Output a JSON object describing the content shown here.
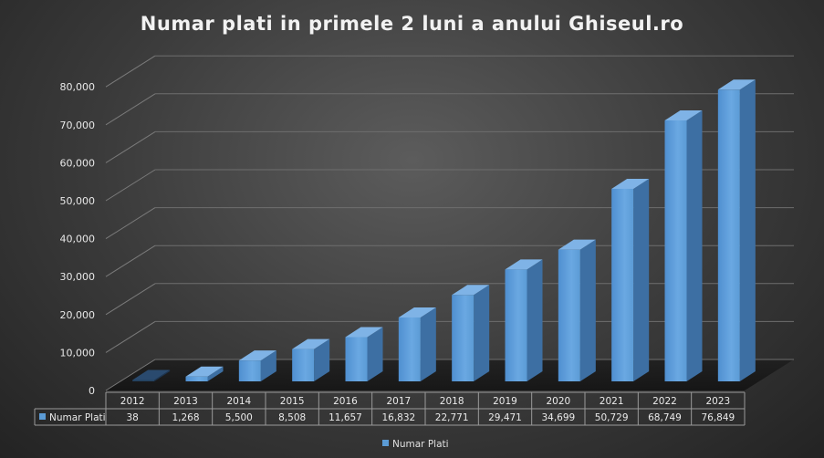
{
  "chart_data": {
    "type": "bar",
    "title": "Numar plati in primele 2 luni a anului Ghiseul.ro",
    "categories": [
      "2012",
      "2013",
      "2014",
      "2015",
      "2016",
      "2017",
      "2018",
      "2019",
      "2020",
      "2021",
      "2022",
      "2023"
    ],
    "series": [
      {
        "name": "Numar Plati",
        "values": [
          38,
          1268,
          5500,
          8508,
          11657,
          16832,
          22771,
          29471,
          34699,
          50729,
          68749,
          76849
        ],
        "value_labels": [
          "38",
          "1,268",
          "5,500",
          "8,508",
          "11,657",
          "16,832",
          "22,771",
          "29,471",
          "34,699",
          "50,729",
          "68,749",
          "76,849"
        ],
        "color": "#5b9bd5"
      }
    ],
    "ylim": [
      0,
      80000
    ],
    "yticks": [
      "0",
      "10,000",
      "20,000",
      "30,000",
      "40,000",
      "50,000",
      "60,000",
      "70,000",
      "80,000"
    ],
    "grid": true,
    "legend": "bottom",
    "data_table": true
  }
}
